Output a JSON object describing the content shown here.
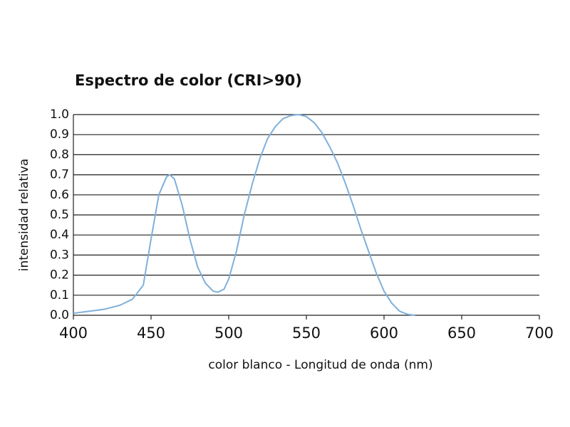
{
  "chart_data": {
    "type": "line",
    "title": "Espectro de color (CRI>90)",
    "x_label": "color blanco - Longitud de onda (nm)",
    "y_label": "intensidad relativa",
    "x": [
      400,
      410,
      420,
      430,
      438,
      445,
      450,
      455,
      460,
      462,
      465,
      470,
      475,
      480,
      485,
      490,
      493,
      497,
      500,
      505,
      510,
      515,
      520,
      525,
      530,
      535,
      540,
      545,
      550,
      555,
      560,
      565,
      570,
      575,
      580,
      585,
      590,
      595,
      600,
      605,
      610,
      615,
      620
    ],
    "series": [
      {
        "color": "#7fb0dc",
        "values": [
          0.01,
          0.02,
          0.03,
          0.05,
          0.08,
          0.15,
          0.38,
          0.6,
          0.69,
          0.7,
          0.68,
          0.55,
          0.38,
          0.24,
          0.16,
          0.12,
          0.115,
          0.13,
          0.18,
          0.32,
          0.5,
          0.65,
          0.78,
          0.88,
          0.94,
          0.98,
          0.995,
          1.0,
          0.99,
          0.96,
          0.91,
          0.84,
          0.76,
          0.66,
          0.55,
          0.43,
          0.32,
          0.21,
          0.12,
          0.06,
          0.02,
          0.005,
          0
        ]
      }
    ],
    "xlim": [
      400,
      700
    ],
    "xticks": [
      400,
      450,
      500,
      550,
      600,
      650,
      700
    ],
    "ylim": [
      0,
      1
    ],
    "yticks": [
      {
        "value": 0,
        "label": "0.0"
      },
      0.1,
      0.2,
      0.3,
      0.4,
      0.5,
      0.6,
      0.7,
      0.8,
      0.9,
      {
        "value": 1,
        "label": "1.0"
      }
    ],
    "grid": true
  }
}
